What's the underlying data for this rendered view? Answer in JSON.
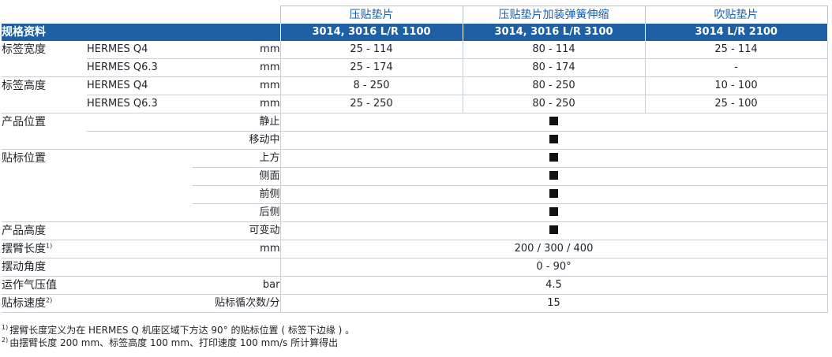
{
  "products": [
    {
      "name": "压贴垫片",
      "model": "3014, 3016 L/R 1100"
    },
    {
      "name": "压贴垫片加装弹簧伸缩",
      "model": "3014, 3016 L/R 3100"
    },
    {
      "name": "吹贴垫片",
      "model": "3014 L/R 2100"
    }
  ],
  "section_label": "规格资料",
  "rows": {
    "label_width": {
      "label": "标签宽度",
      "q4": {
        "sub": "HERMES Q4",
        "unit": "mm",
        "values": [
          "25 - 114",
          "80 - 114",
          "25 - 114"
        ]
      },
      "q63": {
        "sub": "HERMES Q6.3",
        "unit": "mm",
        "values": [
          "25 - 174",
          "80 - 174",
          "-"
        ]
      }
    },
    "label_height": {
      "label": "标签高度",
      "q4": {
        "sub": "HERMES Q4",
        "unit": "mm",
        "values": [
          "8 - 250",
          "80 - 250",
          "10 - 100"
        ]
      },
      "q63": {
        "sub": "HERMES Q6.3",
        "unit": "mm",
        "values": [
          "25 - 250",
          "80 - 250",
          "25 - 100"
        ]
      }
    },
    "product_position": {
      "label": "产品位置",
      "options": [
        "静止",
        "移动中"
      ]
    },
    "label_position": {
      "label": "贴标位置",
      "options": [
        "上方",
        "侧面",
        "前侧",
        "后侧"
      ]
    },
    "product_height": {
      "label": "产品高度",
      "option": "可变动"
    },
    "arm_length": {
      "label": "摆臂长度",
      "note": "1)",
      "unit": "mm",
      "value": "200 / 300 / 400"
    },
    "swing_angle": {
      "label": "摆动角度",
      "value": "0 - 90°"
    },
    "air_pressure": {
      "label": "运作气压值",
      "unit": "bar",
      "value": "4.5"
    },
    "label_speed": {
      "label": "贴标速度",
      "note": "2)",
      "unit": "贴标循次数/分",
      "value": "15"
    }
  },
  "footnotes": [
    {
      "mark": "1)",
      "text": "摆臂长度定义为在 HERMES Q 机座区域下方达 90° 的贴标位置 ( 标签下边缘 ) 。"
    },
    {
      "mark": "2)",
      "text": "由摆臂长度 200 mm、标签高度 100 mm、打印速度 100 mm/s 所计算得出"
    }
  ],
  "colors": {
    "header_blue": "#1f5fa3",
    "title_blue": "#1d5ea8",
    "marker": "#111111"
  }
}
